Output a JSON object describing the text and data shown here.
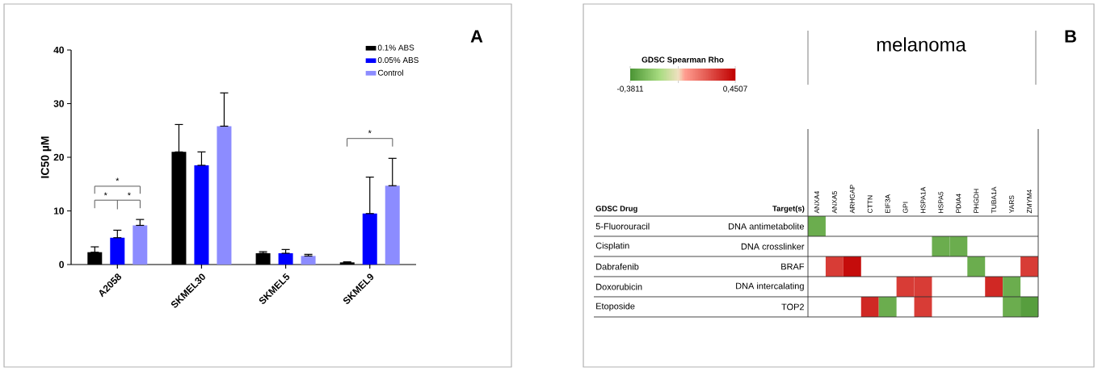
{
  "chart_data": [
    {
      "type": "bar",
      "ylabel": "IC50 µM",
      "categories": [
        "A2058",
        "SKMEL30",
        "SKMEL5",
        "SKMEL9"
      ],
      "ylim": [
        0,
        40
      ],
      "yticks": [
        0,
        10,
        20,
        30,
        40
      ],
      "legend": "top right",
      "series": [
        {
          "name": "0.1% ABS",
          "color": "#000000",
          "values": [
            2.3,
            21,
            2.1,
            0.4
          ],
          "errors": [
            [
              2.3,
              3.3
            ],
            [
              21,
              26.1
            ],
            [
              2.1,
              2.4
            ],
            [
              0.4,
              0.5
            ]
          ]
        },
        {
          "name": "0.05% ABS",
          "color": "#0000ff",
          "values": [
            5.0,
            18.5,
            2.1,
            9.5
          ],
          "errors": [
            [
              5.0,
              6.4
            ],
            [
              18.5,
              21
            ],
            [
              2.1,
              2.8
            ],
            [
              9.5,
              16.3
            ]
          ]
        },
        {
          "name": "Control",
          "color": "#8c8cff",
          "values": [
            7.3,
            25.8,
            1.6,
            14.7
          ],
          "errors": [
            [
              7.3,
              8.4
            ],
            [
              25.8,
              32
            ],
            [
              1.6,
              1.9
            ],
            [
              14.7,
              19.8
            ]
          ]
        }
      ],
      "annotations": [
        "*",
        "*",
        "*",
        "*",
        "A"
      ]
    },
    {
      "type": "heatmap",
      "title": "melanoma",
      "clabel": "GDSC Spearman Rho",
      "ylabel": "Target(s)",
      "y2label": "GDSC Drug",
      "categories": [
        "ANXA4",
        "ANXA5",
        "ARHGAP",
        "CTTN",
        "EIF3A",
        "GPI",
        "HSPA1A",
        "HSPA5",
        "PDIA4",
        "PHGDH",
        "TUBA1A",
        "YARS",
        "ZMYM4"
      ],
      "y_categories": [
        "DNA antimetabolite",
        "DNA crosslinker",
        "BRAF",
        "DNA intercalating",
        "TOP2"
      ],
      "y2_categories": [
        "5-Fluorouracil",
        "Cisplatin",
        "Dabrafenib",
        "Doxorubicin",
        "Etoposide"
      ],
      "cells": [
        [
          -0.3,
          null,
          null,
          null,
          null,
          null,
          null,
          null,
          null,
          null,
          null,
          null,
          null
        ],
        [
          null,
          null,
          null,
          null,
          null,
          null,
          null,
          -0.3,
          -0.3,
          null,
          null,
          null,
          null
        ],
        [
          null,
          0.3,
          0.42,
          null,
          null,
          null,
          null,
          null,
          null,
          -0.3,
          null,
          null,
          0.3
        ],
        [
          null,
          null,
          null,
          null,
          null,
          0.3,
          0.3,
          null,
          null,
          null,
          0.35,
          -0.3,
          null
        ],
        [
          null,
          null,
          null,
          0.35,
          -0.3,
          null,
          0.3,
          null,
          null,
          null,
          null,
          -0.3,
          -0.35
        ]
      ],
      "clim": [
        -0.3811,
        0.4507
      ],
      "cticks": [
        {
          "value": -0.3811,
          "label": "-0,3811"
        },
        {
          "value": 0,
          "label": null
        },
        {
          "value": 0.4507,
          "label": "0,4507"
        }
      ],
      "annotations": [
        "B"
      ]
    }
  ]
}
